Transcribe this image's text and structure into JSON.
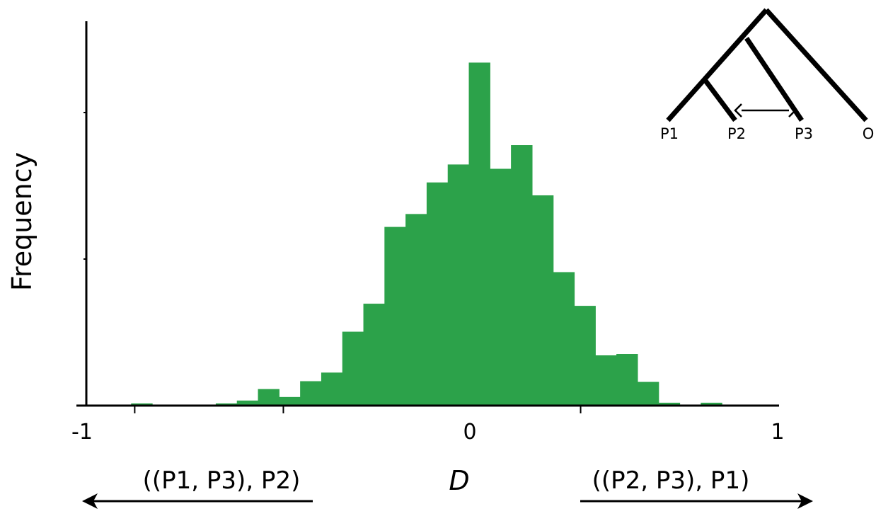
{
  "chart_data": {
    "type": "bar",
    "title": "",
    "xlabel": "D",
    "ylabel": "Frequency",
    "xlim": [
      -1,
      1
    ],
    "x_tick_labels": [
      "-1",
      "0",
      "1"
    ],
    "bar_color": "#2ca24a",
    "bin_width": 0.061,
    "bin_centers": [
      -0.84,
      -0.595,
      -0.534,
      -0.473,
      -0.412,
      -0.351,
      -0.29,
      -0.229,
      -0.168,
      -0.107,
      -0.046,
      0.015,
      0.076,
      0.137,
      0.198,
      0.259,
      0.32,
      0.381,
      0.442,
      0.503,
      0.564,
      0.625,
      0.686,
      0.808
    ],
    "values": [
      0.3,
      0.3,
      0.7,
      2.3,
      1.2,
      3.4,
      4.6,
      10.3,
      14.2,
      24.9,
      26.7,
      31.1,
      33.6,
      47.8,
      33.0,
      36.3,
      29.3,
      18.6,
      13.9,
      7.0,
      7.2,
      3.3,
      0.4,
      0.4
    ],
    "ylim": [
      0,
      51
    ],
    "grid": false,
    "legend": "none"
  },
  "annotations": {
    "left_topology": "((P1, P3), P2)",
    "right_topology": "((P2, P3), P1)"
  },
  "tree": {
    "leaves": [
      "P1",
      "P2",
      "P3",
      "O"
    ]
  }
}
